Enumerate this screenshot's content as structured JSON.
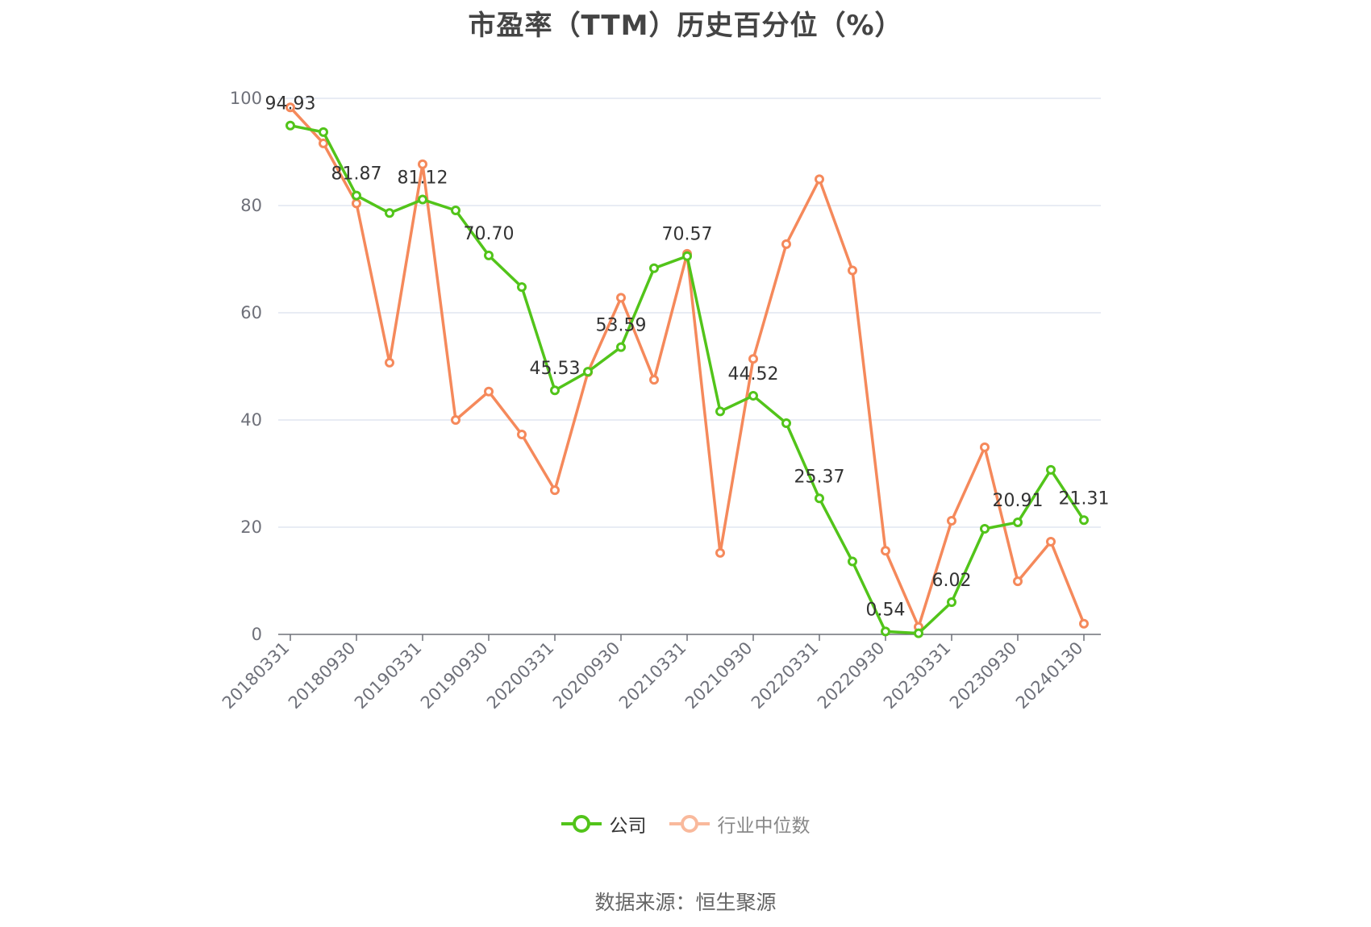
{
  "title": "市盈率（TTM）历史百分位（%）",
  "source": "数据来源：恒生聚源",
  "colors": {
    "company": "#52c41a",
    "industry": "#f5895b",
    "grid": "#e0e6f1",
    "axis": "#6e7079"
  },
  "chart_data": {
    "type": "line",
    "title": "市盈率（TTM）历史百分位（%）",
    "xlabel": "",
    "ylabel": "",
    "ylim": [
      0,
      100
    ],
    "yticks": [
      0,
      20,
      40,
      60,
      80,
      100
    ],
    "grid": true,
    "legend_position": "bottom",
    "x": [
      "20180331",
      "20180630",
      "20180930",
      "20181231",
      "20190331",
      "20190630",
      "20190930",
      "20191231",
      "20200331",
      "20200630",
      "20200930",
      "20201231",
      "20210331",
      "20210630",
      "20210930",
      "20211231",
      "20220331",
      "20220630",
      "20220930",
      "20221231",
      "20230331",
      "20230630",
      "20230930",
      "20231231",
      "20240130"
    ],
    "x_tick_labels": [
      "20180331",
      "20180930",
      "20190331",
      "20190930",
      "20200331",
      "20200930",
      "20210331",
      "20210930",
      "20220331",
      "20220930",
      "20230331",
      "20230930",
      "20240130"
    ],
    "series": [
      {
        "name": "公司",
        "values": [
          94.93,
          93.7,
          81.87,
          78.6,
          81.12,
          79.1,
          70.7,
          64.8,
          45.53,
          49.0,
          53.59,
          68.3,
          70.57,
          41.6,
          44.52,
          39.4,
          25.37,
          13.6,
          0.54,
          0.2,
          6.02,
          19.7,
          20.91,
          30.7,
          21.31
        ],
        "labels": [
          "94.93",
          "",
          "81.87",
          "",
          "81.12",
          "",
          "70.70",
          "",
          "45.53",
          "",
          "53.59",
          "",
          "70.57",
          "",
          "44.52",
          "",
          "25.37",
          "",
          "0.54",
          "",
          "6.02",
          "",
          "20.91",
          "",
          "21.31"
        ]
      },
      {
        "name": "行业中位数",
        "values": [
          98.3,
          91.6,
          80.4,
          50.7,
          87.7,
          40.0,
          45.3,
          37.3,
          26.9,
          48.9,
          62.8,
          47.5,
          71.0,
          15.2,
          51.4,
          72.8,
          84.9,
          67.9,
          15.6,
          1.4,
          21.2,
          34.9,
          9.9,
          17.3,
          2.0
        ]
      }
    ]
  }
}
